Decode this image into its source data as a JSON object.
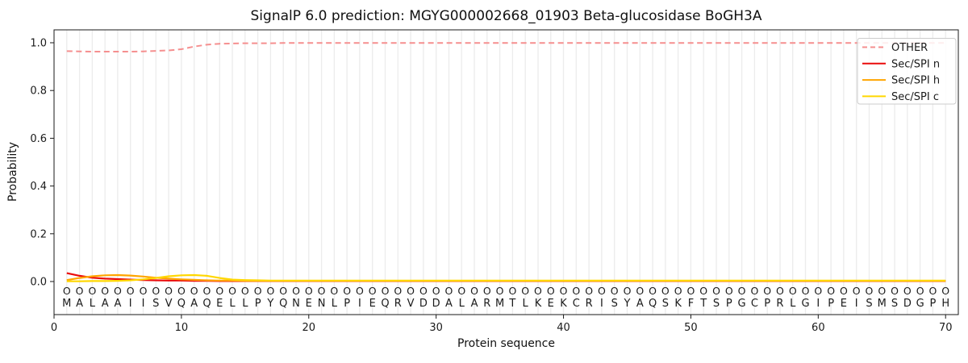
{
  "chart_data": {
    "type": "line",
    "title": "SignalP 6.0 prediction: MGYG000002668_01903 Beta-glucosidase BoGH3A",
    "xlabel": "Protein sequence",
    "ylabel": "Probability",
    "xticks": [
      0,
      10,
      20,
      30,
      40,
      50,
      60,
      70
    ],
    "ytick_labels": [
      "0.0",
      "0.2",
      "0.4",
      "0.6",
      "0.8",
      "1.0"
    ],
    "xlim": [
      0,
      71
    ],
    "ylim": [
      -0.14,
      1.05
    ],
    "grid": "light vertical line at every residue position",
    "legend_position": "upper right",
    "x": [
      1,
      2,
      3,
      4,
      5,
      6,
      7,
      8,
      9,
      10,
      11,
      12,
      13,
      14,
      15,
      16,
      17,
      18,
      19,
      20,
      21,
      22,
      23,
      24,
      25,
      26,
      27,
      28,
      29,
      30,
      31,
      32,
      33,
      34,
      35,
      36,
      37,
      38,
      39,
      40,
      41,
      42,
      43,
      44,
      45,
      46,
      47,
      48,
      49,
      50,
      51,
      52,
      53,
      54,
      55,
      56,
      57,
      58,
      59,
      60,
      61,
      62,
      63,
      64,
      65,
      66,
      67,
      68,
      69,
      70
    ],
    "series": [
      {
        "name": "OTHER",
        "color": "#f58f8f",
        "style": "dashed",
        "values": [
          0.965,
          0.964,
          0.963,
          0.963,
          0.963,
          0.963,
          0.964,
          0.966,
          0.968,
          0.973,
          0.984,
          0.992,
          0.996,
          0.997,
          0.998,
          0.998,
          0.998,
          0.999,
          0.999,
          0.999,
          0.999,
          0.999,
          0.999,
          0.999,
          0.999,
          0.999,
          0.999,
          0.999,
          0.999,
          0.999,
          0.999,
          0.999,
          0.999,
          0.999,
          0.999,
          0.999,
          0.999,
          0.999,
          0.999,
          0.999,
          0.999,
          0.999,
          0.999,
          0.999,
          0.999,
          0.999,
          0.999,
          0.999,
          0.999,
          0.999,
          0.999,
          0.999,
          0.999,
          0.999,
          0.999,
          0.999,
          0.999,
          0.999,
          0.999,
          0.999,
          0.999,
          0.999,
          0.999,
          0.999,
          0.999,
          0.999,
          0.999,
          0.999,
          0.999,
          0.999
        ]
      },
      {
        "name": "Sec/SPI n",
        "color": "#ea0b0b",
        "style": "solid",
        "values": [
          0.035,
          0.024,
          0.016,
          0.012,
          0.01,
          0.008,
          0.006,
          0.005,
          0.004,
          0.004,
          0.003,
          0.003,
          0.002,
          0.002,
          0.002,
          0.002,
          0.002,
          0.002,
          0.002,
          0.002,
          0.002,
          0.002,
          0.002,
          0.002,
          0.002,
          0.002,
          0.002,
          0.002,
          0.002,
          0.002,
          0.002,
          0.002,
          0.002,
          0.002,
          0.002,
          0.002,
          0.002,
          0.002,
          0.002,
          0.002,
          0.002,
          0.002,
          0.002,
          0.002,
          0.002,
          0.002,
          0.002,
          0.002,
          0.002,
          0.002,
          0.002,
          0.002,
          0.002,
          0.002,
          0.002,
          0.002,
          0.002,
          0.002,
          0.002,
          0.002,
          0.002,
          0.002,
          0.002,
          0.002,
          0.002,
          0.002,
          0.002,
          0.002,
          0.002,
          0.002
        ]
      },
      {
        "name": "Sec/SPI h",
        "color": "#ffa500",
        "style": "solid",
        "values": [
          0.006,
          0.015,
          0.022,
          0.026,
          0.027,
          0.025,
          0.021,
          0.016,
          0.012,
          0.009,
          0.007,
          0.005,
          0.004,
          0.004,
          0.003,
          0.003,
          0.003,
          0.003,
          0.003,
          0.003,
          0.003,
          0.003,
          0.003,
          0.003,
          0.003,
          0.003,
          0.003,
          0.003,
          0.003,
          0.003,
          0.003,
          0.003,
          0.003,
          0.003,
          0.003,
          0.003,
          0.003,
          0.003,
          0.003,
          0.003,
          0.003,
          0.003,
          0.003,
          0.003,
          0.003,
          0.003,
          0.003,
          0.003,
          0.003,
          0.003,
          0.003,
          0.003,
          0.003,
          0.003,
          0.003,
          0.003,
          0.003,
          0.003,
          0.003,
          0.003,
          0.003,
          0.003,
          0.003,
          0.003,
          0.003,
          0.003,
          0.003,
          0.003,
          0.003,
          0.003
        ]
      },
      {
        "name": "Sec/SPI c",
        "color": "#ffd700",
        "style": "solid",
        "values": [
          0.001,
          0.001,
          0.002,
          0.002,
          0.003,
          0.005,
          0.009,
          0.015,
          0.022,
          0.026,
          0.027,
          0.024,
          0.015,
          0.008,
          0.006,
          0.005,
          0.004,
          0.004,
          0.004,
          0.004,
          0.004,
          0.004,
          0.004,
          0.004,
          0.004,
          0.004,
          0.004,
          0.004,
          0.004,
          0.004,
          0.004,
          0.004,
          0.004,
          0.004,
          0.004,
          0.004,
          0.004,
          0.004,
          0.004,
          0.004,
          0.004,
          0.004,
          0.004,
          0.004,
          0.004,
          0.004,
          0.004,
          0.004,
          0.004,
          0.004,
          0.004,
          0.004,
          0.004,
          0.004,
          0.004,
          0.004,
          0.004,
          0.004,
          0.004,
          0.004,
          0.004,
          0.004,
          0.004,
          0.004,
          0.004,
          0.004,
          0.004,
          0.004,
          0.004,
          0.004
        ]
      }
    ],
    "sequence": "MALAAIISVQAQELLPYQNENLPIEQRVDDALARMTLKEKCRISYAQSKFTSPGCPRLGIPEISMSDGPH",
    "predicted_labels": "OOOOOOOOOOOOOOOOOOOOOOOOOOOOOOOOOOOOOOOOOOOOOOOOOOOOOOOOOOOOOOOOOOOOOO"
  },
  "legend": {
    "entries": [
      "OTHER",
      "Sec/SPI n",
      "Sec/SPI h",
      "Sec/SPI c"
    ]
  }
}
